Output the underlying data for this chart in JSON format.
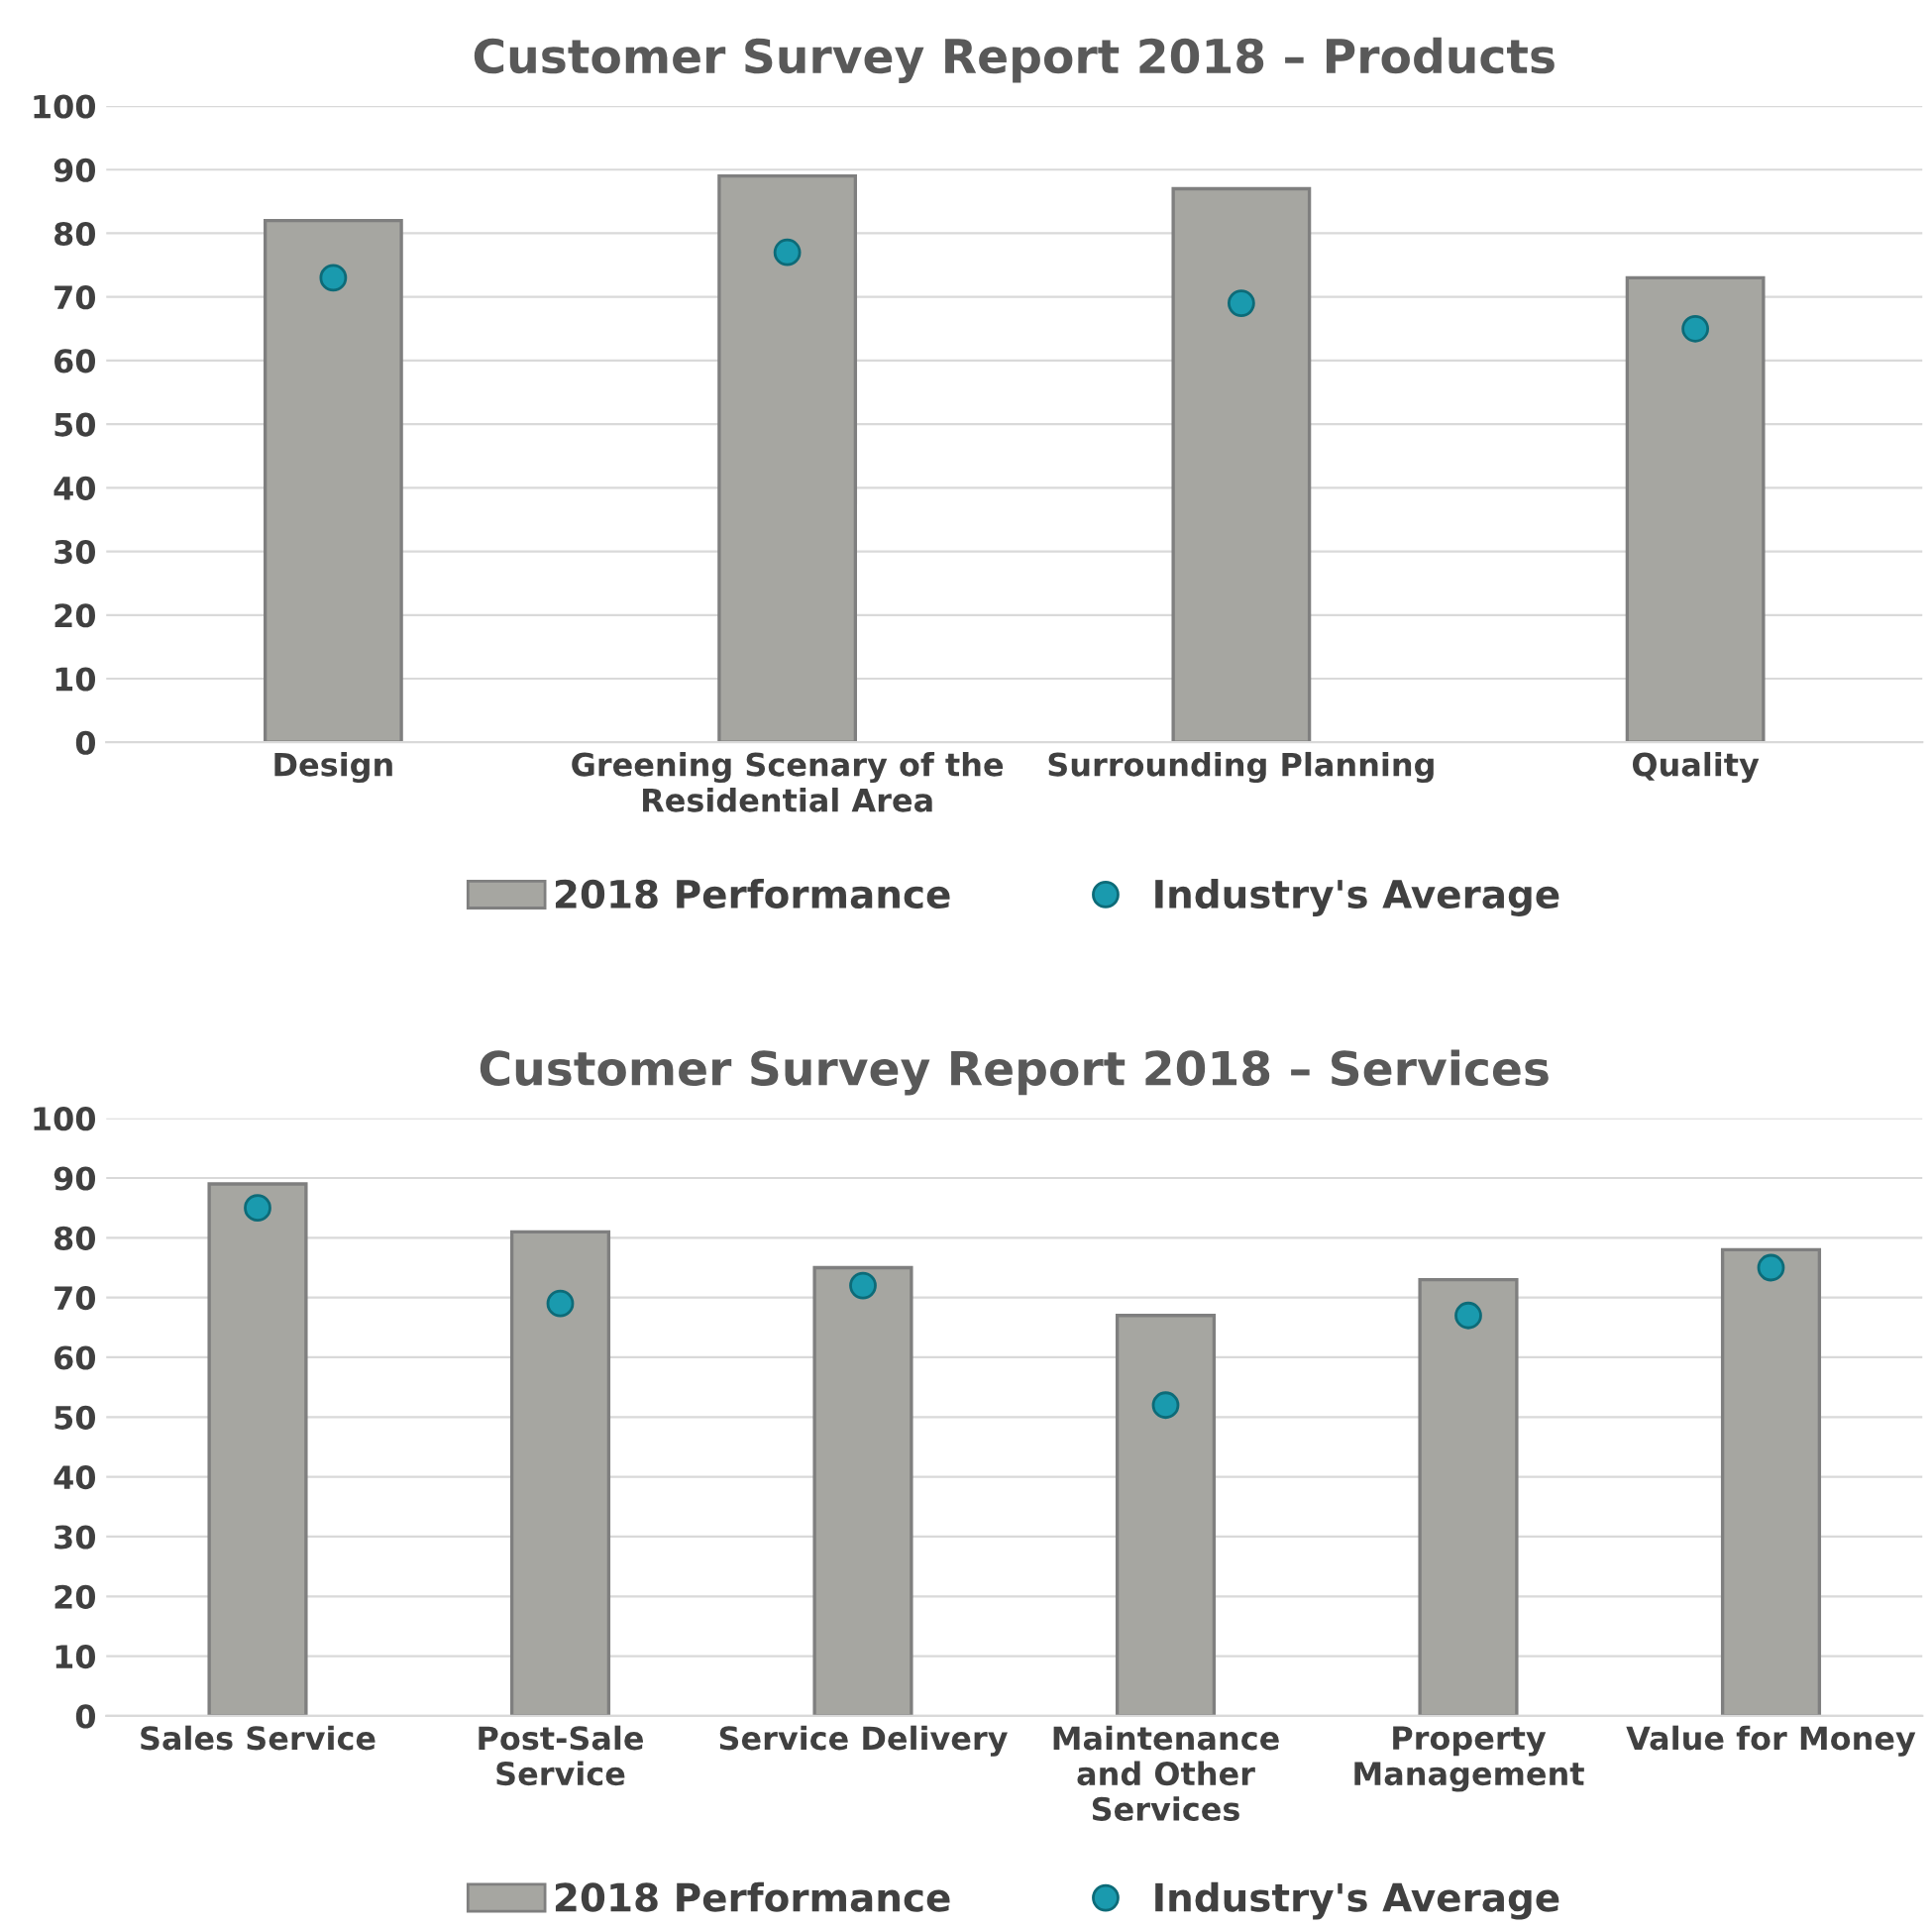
{
  "chart_data": [
    {
      "type": "bar",
      "title": "Customer Survey Report 2018 – Products",
      "categories": [
        "Design",
        "Greening Scenary of the\nResidential Area",
        "Surrounding Planning",
        "Quality"
      ],
      "series": [
        {
          "name": "2018 Performance",
          "color": "#a6a6a1",
          "values": [
            82,
            89,
            87,
            73
          ]
        },
        {
          "name": "Industry's Average",
          "type": "scatter",
          "color": "#1a9aae",
          "values": [
            73,
            77,
            69,
            65
          ]
        }
      ],
      "ylim": [
        0,
        100
      ],
      "yticks": [
        0,
        10,
        20,
        30,
        40,
        50,
        60,
        70,
        80,
        90,
        100
      ],
      "grid": "y",
      "legend": "bottom",
      "marker": "circle"
    },
    {
      "type": "bar",
      "title": "Customer Survey Report 2018 – Services",
      "categories": [
        "Sales Service",
        "Post-Sale\nService",
        "Service Delivery",
        "Maintenance\nand Other\nServices",
        "Property\nManagement",
        "Value for Money"
      ],
      "series": [
        {
          "name": "2018 Performance",
          "color": "#a6a6a1",
          "values": [
            89,
            81,
            75,
            67,
            73,
            78
          ]
        },
        {
          "name": "Industry's Average",
          "type": "scatter",
          "color": "#1a9aae",
          "values": [
            85,
            69,
            72,
            52,
            67,
            75
          ]
        }
      ],
      "ylim": [
        0,
        100
      ],
      "yticks": [
        0,
        10,
        20,
        30,
        40,
        50,
        60,
        70,
        80,
        90,
        100
      ],
      "grid": "y",
      "legend": "bottom",
      "marker": "circle"
    }
  ]
}
